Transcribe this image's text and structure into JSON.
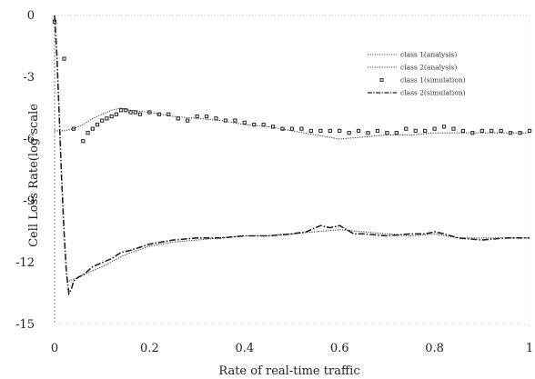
{
  "chart_data": {
    "type": "line",
    "xlabel": "Rate of real-time traffic",
    "ylabel": "Cell Loss Rate(log  scale",
    "xlim": [
      0,
      1
    ],
    "ylim": [
      -15,
      0
    ],
    "x_ticks": [
      0,
      0.2,
      0.4,
      0.6,
      0.8,
      1
    ],
    "x_tick_labels": [
      "0",
      "0.2",
      "0.4",
      "0.6",
      "0.8",
      "1"
    ],
    "y_ticks": [
      0,
      -3,
      -6,
      -9,
      -12,
      -15
    ],
    "y_tick_labels": [
      "0",
      "-3",
      "-6",
      "-9",
      "-12",
      "-15"
    ],
    "legend_position": "top-right",
    "series": [
      {
        "name": "class 1(analysis)",
        "style": "dotted",
        "color": "#444444",
        "x": [
          0.0,
          0.02,
          0.04,
          0.06,
          0.08,
          0.1,
          0.12,
          0.14,
          0.16,
          0.2,
          0.25,
          0.3,
          0.35,
          0.4,
          0.45,
          0.5,
          0.55,
          0.6,
          0.65,
          0.7,
          0.75,
          0.8,
          0.85,
          0.9,
          0.95,
          1.0
        ],
        "y": [
          -5.6,
          -5.6,
          -5.5,
          -5.3,
          -5.0,
          -4.8,
          -4.6,
          -4.5,
          -4.6,
          -4.7,
          -4.9,
          -5.0,
          -5.1,
          -5.3,
          -5.4,
          -5.6,
          -5.8,
          -6.0,
          -5.9,
          -5.8,
          -5.8,
          -5.7,
          -5.7,
          -5.7,
          -5.7,
          -5.7
        ]
      },
      {
        "name": "class 2(analysis)",
        "style": "dotted",
        "color": "#444444",
        "x": [
          0.03,
          0.05,
          0.1,
          0.15,
          0.2,
          0.25,
          0.3,
          0.35,
          0.4,
          0.45,
          0.5,
          0.55,
          0.6,
          0.65,
          0.7,
          0.75,
          0.8,
          0.85,
          0.9,
          0.95,
          1.0
        ],
        "y": [
          -12.9,
          -12.7,
          -12.2,
          -11.6,
          -11.2,
          -11.0,
          -10.9,
          -10.8,
          -10.7,
          -10.7,
          -10.6,
          -10.5,
          -10.4,
          -10.5,
          -10.6,
          -10.7,
          -10.6,
          -10.8,
          -10.8,
          -10.8,
          -10.8
        ]
      },
      {
        "name": "class 1(simulation)",
        "style": "markers",
        "color": "#333333",
        "x": [
          0.0,
          0.02,
          0.04,
          0.06,
          0.07,
          0.08,
          0.09,
          0.1,
          0.11,
          0.12,
          0.13,
          0.14,
          0.15,
          0.16,
          0.17,
          0.18,
          0.2,
          0.22,
          0.24,
          0.26,
          0.28,
          0.3,
          0.32,
          0.34,
          0.36,
          0.38,
          0.4,
          0.42,
          0.44,
          0.46,
          0.48,
          0.5,
          0.52,
          0.54,
          0.56,
          0.58,
          0.6,
          0.62,
          0.64,
          0.66,
          0.68,
          0.7,
          0.72,
          0.74,
          0.76,
          0.78,
          0.8,
          0.82,
          0.84,
          0.86,
          0.88,
          0.9,
          0.92,
          0.94,
          0.96,
          0.98,
          1.0
        ],
        "y": [
          -0.3,
          -2.1,
          -5.5,
          -6.1,
          -5.7,
          -5.5,
          -5.3,
          -5.1,
          -5.0,
          -4.9,
          -4.8,
          -4.6,
          -4.6,
          -4.7,
          -4.7,
          -4.8,
          -4.7,
          -4.8,
          -4.8,
          -5.0,
          -5.1,
          -4.9,
          -4.9,
          -5.0,
          -5.1,
          -5.1,
          -5.2,
          -5.3,
          -5.3,
          -5.4,
          -5.5,
          -5.5,
          -5.5,
          -5.6,
          -5.6,
          -5.6,
          -5.6,
          -5.7,
          -5.6,
          -5.7,
          -5.6,
          -5.7,
          -5.7,
          -5.5,
          -5.6,
          -5.6,
          -5.5,
          -5.4,
          -5.5,
          -5.6,
          -5.7,
          -5.6,
          -5.6,
          -5.6,
          -5.7,
          -5.7,
          -5.6
        ]
      },
      {
        "name": "class 2(simulation)",
        "style": "dashdot",
        "color": "#222222",
        "x": [
          0.0,
          0.005,
          0.01,
          0.015,
          0.02,
          0.025,
          0.03,
          0.035,
          0.04,
          0.05,
          0.06,
          0.07,
          0.08,
          0.1,
          0.12,
          0.14,
          0.16,
          0.2,
          0.25,
          0.3,
          0.35,
          0.4,
          0.45,
          0.5,
          0.53,
          0.56,
          0.58,
          0.6,
          0.63,
          0.65,
          0.7,
          0.75,
          0.78,
          0.8,
          0.82,
          0.85,
          0.9,
          0.95,
          1.0
        ],
        "y": [
          0.0,
          -2.0,
          -5.0,
          -8.0,
          -10.5,
          -12.5,
          -13.5,
          -13.3,
          -12.9,
          -12.7,
          -12.6,
          -12.4,
          -12.2,
          -12.0,
          -11.8,
          -11.5,
          -11.4,
          -11.1,
          -10.9,
          -10.8,
          -10.8,
          -10.7,
          -10.7,
          -10.6,
          -10.5,
          -10.2,
          -10.3,
          -10.2,
          -10.6,
          -10.6,
          -10.7,
          -10.6,
          -10.6,
          -10.5,
          -10.6,
          -10.8,
          -10.9,
          -10.8,
          -10.8
        ]
      }
    ]
  }
}
